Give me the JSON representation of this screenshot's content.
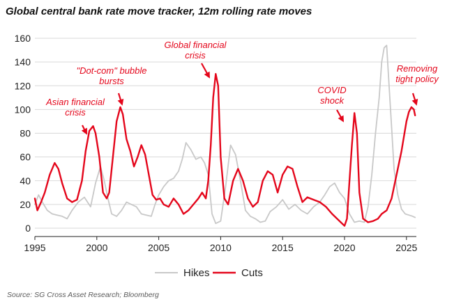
{
  "title": "Global central bank rate move tracker, 12m rolling rate moves",
  "source": "Source: SG Cross Asset Research; Bloomberg",
  "colors": {
    "hikes": "#c8c8c8",
    "cuts": "#e4061b",
    "grid": "#d9d9d9",
    "axis": "#222222"
  },
  "chart_data": {
    "type": "line",
    "title": "Global central bank rate move tracker, 12m rolling rate moves",
    "xlabel": "",
    "ylabel": "",
    "xlim": [
      1995,
      2025.8
    ],
    "ylim": [
      0,
      160
    ],
    "x_ticks": [
      "1995",
      "2000",
      "2005",
      "2010",
      "2015",
      "2020",
      "2025"
    ],
    "y_ticks": [
      "0",
      "20",
      "40",
      "60",
      "80",
      "100",
      "120",
      "140",
      "160"
    ],
    "grid": true,
    "legend": {
      "position": "bottom",
      "entries": [
        "Hikes",
        "Cuts"
      ]
    },
    "series": [
      {
        "name": "Hikes",
        "x": [
          1995.0,
          1995.3,
          1995.6,
          1996.0,
          1996.4,
          1996.8,
          1997.2,
          1997.6,
          1998.0,
          1998.5,
          1999.0,
          1999.5,
          1999.9,
          2000.3,
          2000.6,
          2000.9,
          2001.2,
          2001.6,
          2002.0,
          2002.4,
          2002.8,
          2003.2,
          2003.6,
          2004.0,
          2004.4,
          2004.7,
          2005.0,
          2005.4,
          2005.8,
          2006.2,
          2006.6,
          2006.9,
          2007.2,
          2007.6,
          2008.0,
          2008.4,
          2008.7,
          2009.0,
          2009.3,
          2009.6,
          2010.0,
          2010.4,
          2010.8,
          2011.2,
          2011.6,
          2012.0,
          2012.4,
          2012.8,
          2013.2,
          2013.6,
          2014.0,
          2014.5,
          2015.0,
          2015.5,
          2016.0,
          2016.5,
          2017.0,
          2017.5,
          2018.0,
          2018.4,
          2018.8,
          2019.2,
          2019.6,
          2020.0,
          2020.4,
          2020.8,
          2021.2,
          2021.6,
          2021.9,
          2022.2,
          2022.5,
          2022.8,
          2023.0,
          2023.2,
          2023.4,
          2023.6,
          2023.8,
          2024.0,
          2024.3,
          2024.6,
          2024.9,
          2025.2,
          2025.5,
          2025.7
        ],
        "values": [
          20,
          28,
          22,
          15,
          12,
          11,
          10,
          8,
          15,
          22,
          26,
          18,
          38,
          52,
          40,
          25,
          12,
          10,
          15,
          22,
          20,
          18,
          12,
          11,
          10,
          20,
          28,
          35,
          40,
          42,
          48,
          58,
          72,
          66,
          58,
          60,
          55,
          45,
          12,
          4,
          6,
          35,
          70,
          62,
          40,
          15,
          10,
          8,
          5,
          6,
          14,
          18,
          24,
          16,
          20,
          15,
          12,
          18,
          22,
          28,
          35,
          38,
          30,
          25,
          12,
          5,
          6,
          5,
          18,
          45,
          80,
          110,
          140,
          152,
          154,
          120,
          85,
          50,
          28,
          16,
          12,
          11,
          10,
          9
        ]
      },
      {
        "name": "Cuts",
        "x": [
          1995.0,
          1995.2,
          1995.5,
          1995.8,
          1996.2,
          1996.6,
          1996.9,
          1997.2,
          1997.6,
          1998.0,
          1998.4,
          1998.8,
          1999.1,
          1999.4,
          1999.7,
          1999.9,
          2000.2,
          2000.5,
          2000.8,
          2001.0,
          2001.3,
          2001.6,
          2001.9,
          2002.1,
          2002.4,
          2002.7,
          2003.0,
          2003.3,
          2003.6,
          2003.9,
          2004.2,
          2004.5,
          2004.8,
          2005.1,
          2005.4,
          2005.8,
          2006.2,
          2006.6,
          2007.0,
          2007.4,
          2007.8,
          2008.2,
          2008.5,
          2008.8,
          2009.0,
          2009.2,
          2009.4,
          2009.6,
          2009.8,
          2010.0,
          2010.3,
          2010.6,
          2011.0,
          2011.4,
          2011.8,
          2012.2,
          2012.6,
          2013.0,
          2013.4,
          2013.8,
          2014.2,
          2014.6,
          2015.0,
          2015.4,
          2015.8,
          2016.2,
          2016.6,
          2017.0,
          2017.5,
          2018.0,
          2018.5,
          2019.0,
          2019.4,
          2019.8,
          2020.0,
          2020.2,
          2020.4,
          2020.6,
          2020.8,
          2021.0,
          2021.2,
          2021.5,
          2021.9,
          2022.3,
          2022.7,
          2023.0,
          2023.4,
          2023.8,
          2024.2,
          2024.6,
          2025.0,
          2025.2,
          2025.4,
          2025.6,
          2025.7
        ],
        "values": [
          25,
          15,
          22,
          30,
          45,
          55,
          50,
          38,
          25,
          22,
          24,
          40,
          65,
          82,
          86,
          80,
          60,
          30,
          25,
          30,
          60,
          90,
          102,
          96,
          75,
          65,
          52,
          60,
          70,
          62,
          45,
          28,
          24,
          25,
          20,
          18,
          25,
          20,
          12,
          15,
          20,
          25,
          30,
          25,
          40,
          70,
          110,
          130,
          120,
          60,
          25,
          20,
          40,
          50,
          40,
          25,
          18,
          22,
          40,
          48,
          45,
          30,
          45,
          52,
          50,
          35,
          22,
          26,
          24,
          22,
          18,
          12,
          8,
          4,
          2,
          8,
          40,
          70,
          97,
          80,
          30,
          8,
          5,
          6,
          8,
          12,
          15,
          25,
          45,
          65,
          90,
          98,
          102,
          100,
          95
        ]
      }
    ],
    "annotations": [
      {
        "lines": [
          "Asian financial",
          "crisis"
        ]
      },
      {
        "lines": [
          "\"Dot-com\" bubble",
          "bursts"
        ]
      },
      {
        "lines": [
          "Global financial",
          "crisis"
        ]
      },
      {
        "lines": [
          "COVID",
          "shock"
        ]
      },
      {
        "lines": [
          "Removing",
          "tight policy"
        ]
      }
    ]
  }
}
